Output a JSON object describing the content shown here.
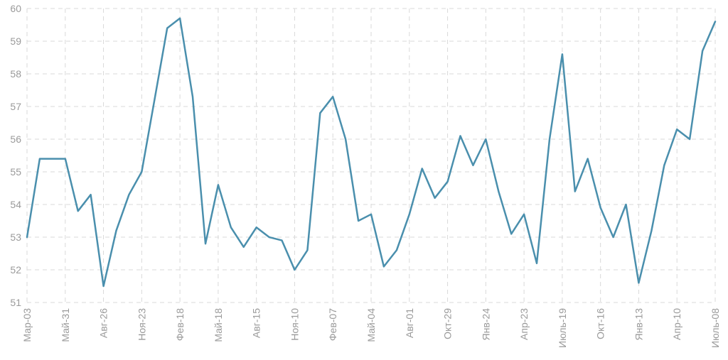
{
  "chart_data": {
    "type": "line",
    "title": "",
    "xlabel": "",
    "ylabel": "",
    "ylim": [
      51,
      60
    ],
    "yticks": [
      "51",
      "52",
      "53",
      "54",
      "55",
      "56",
      "57",
      "58",
      "59",
      "60"
    ],
    "xtick_labels": [
      "Мар-03",
      "Май-31",
      "Авг-26",
      "Ноя-23",
      "Фев-18",
      "Май-18",
      "Авг-15",
      "Ноя-10",
      "Фев-07",
      "Май-04",
      "Авг-01",
      "Окт-29",
      "Янв-24",
      "Апр-23",
      "Июль-19",
      "Окт-16",
      "Янв-13",
      "Апр-10",
      "Июль-08"
    ],
    "grid": true,
    "legend": "none",
    "colors": {
      "line": "#4a8fad",
      "grid": "#d9d9d9",
      "tick_text": "#9a9a9a"
    },
    "series": [
      {
        "values": [
          53.0,
          55.4,
          55.4,
          55.4,
          53.8,
          54.3,
          51.5,
          53.2,
          54.3,
          55.0,
          57.2,
          59.4,
          59.7,
          57.3,
          52.8,
          54.6,
          53.3,
          52.7,
          53.3,
          53.0,
          52.9,
          52.0,
          52.6,
          56.8,
          57.3,
          56.0,
          53.5,
          53.7,
          52.1,
          52.6,
          53.7,
          55.1,
          54.2,
          54.7,
          56.1,
          55.2,
          56.0,
          54.4,
          53.1,
          53.7,
          52.2,
          56.0,
          58.6,
          54.4,
          55.4,
          53.9,
          53.0,
          54.0,
          51.6,
          53.2,
          55.2,
          56.3,
          56.0,
          58.7,
          59.6
        ]
      }
    ]
  }
}
